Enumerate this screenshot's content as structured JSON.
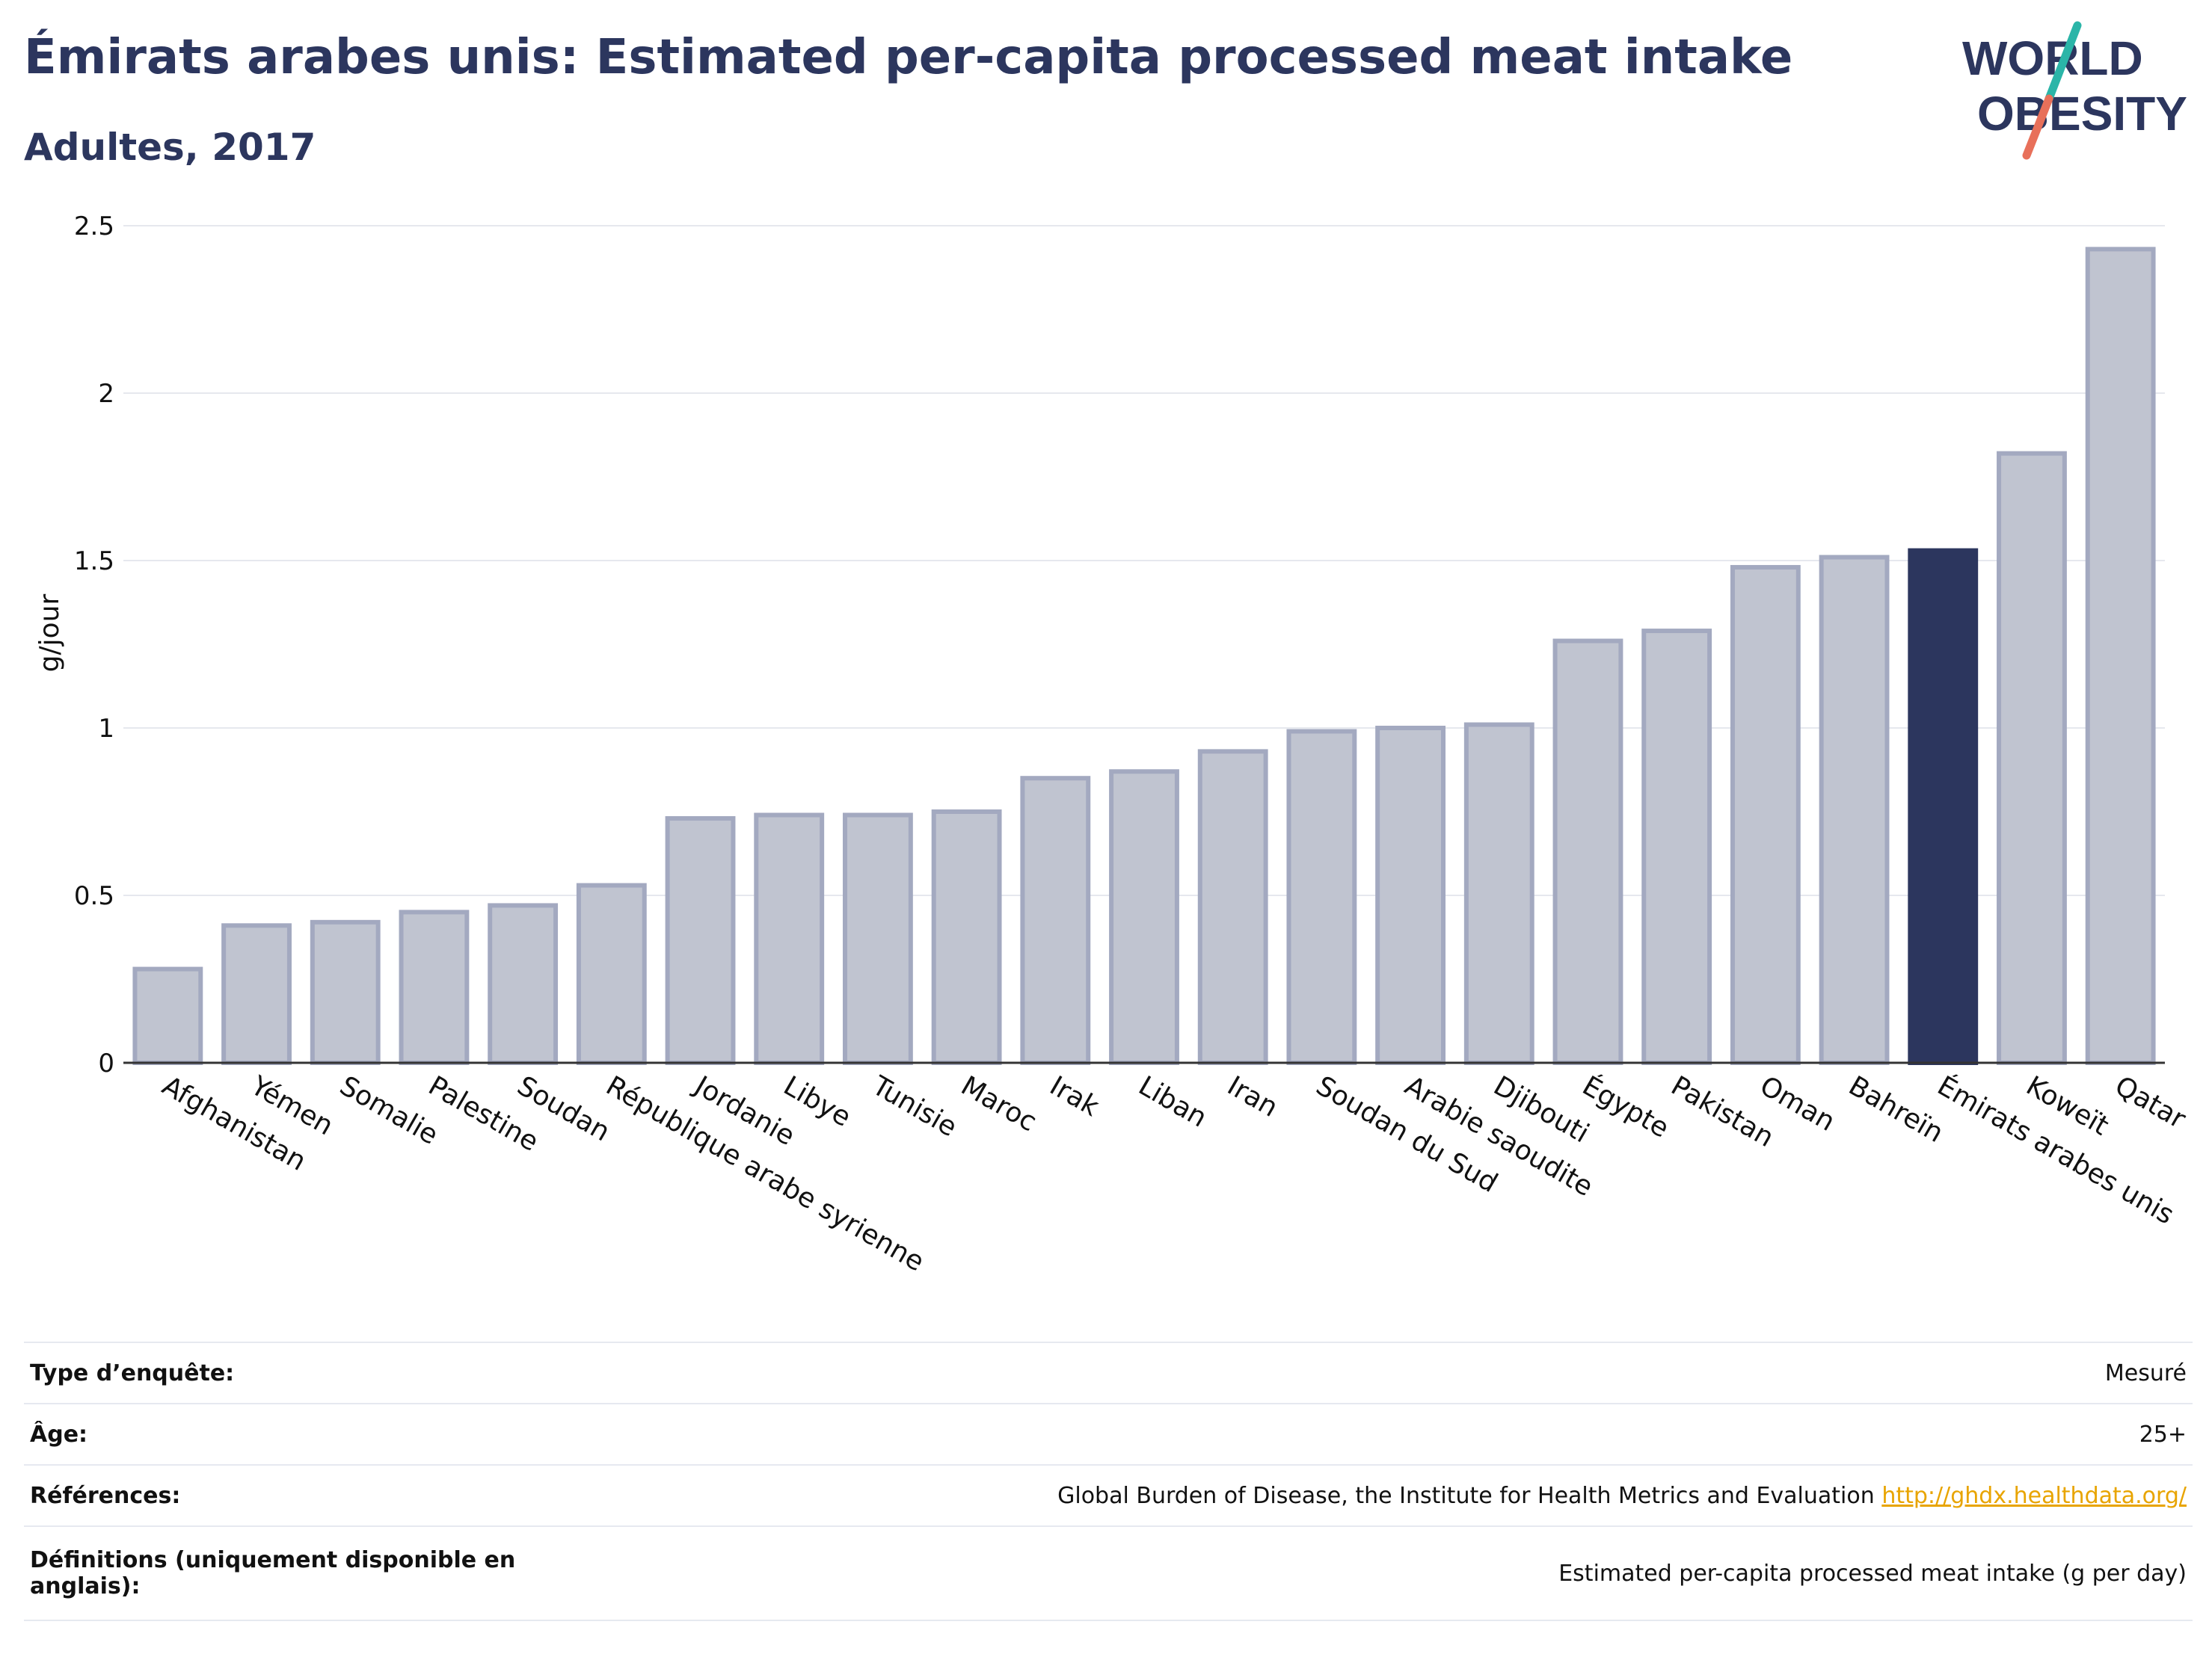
{
  "header": {
    "title": "Émirats arabes unis: Estimated per-capita processed meat intake",
    "subtitle": "Adultes, 2017"
  },
  "logo": {
    "line1": "WORLD",
    "line2": "OBESITY",
    "colors": {
      "text": "#2c365e",
      "slash_top": "#2bb5a8",
      "slash_bottom": "#e8705a"
    }
  },
  "chart_data": {
    "type": "bar",
    "title": "Émirats arabes unis: Estimated per-capita processed meat intake",
    "subtitle": "Adultes, 2017",
    "xlabel": "",
    "ylabel": "g/jour",
    "ylim": [
      0,
      2.5
    ],
    "yticks": [
      0,
      0.5,
      1,
      1.5,
      2,
      2.5
    ],
    "ytick_labels": [
      "0",
      "0.5",
      "1",
      "1.5",
      "2",
      "2.5"
    ],
    "grid": true,
    "categories": [
      "Afghanistan",
      "Yémen",
      "Somalie",
      "Palestine",
      "Soudan",
      "République arabe syrienne",
      "Jordanie",
      "Libye",
      "Tunisie",
      "Maroc",
      "Irak",
      "Liban",
      "Iran",
      "Soudan du Sud",
      "Arabie saoudite",
      "Djibouti",
      "Égypte",
      "Pakistan",
      "Oman",
      "Bahreïn",
      "Émirats arabes unis",
      "Koweït",
      "Qatar"
    ],
    "values": [
      0.28,
      0.41,
      0.42,
      0.45,
      0.47,
      0.53,
      0.73,
      0.74,
      0.74,
      0.75,
      0.85,
      0.87,
      0.93,
      0.99,
      1.0,
      1.01,
      1.26,
      1.29,
      1.48,
      1.51,
      1.53,
      1.82,
      2.43
    ],
    "highlight": "Émirats arabes unis",
    "colors": {
      "bar": "#c0c4d0",
      "bar_outline": "#a3a9c0",
      "highlight": "#2c365e",
      "grid": "#e6e8ee",
      "axis": "#333333"
    }
  },
  "info": [
    {
      "label": "Type d’enquête:",
      "value": "Mesuré"
    },
    {
      "label": "Âge:",
      "value": "25+"
    },
    {
      "label": "Références:",
      "value": "Global Burden of Disease, the Institute for Health Metrics and Evaluation",
      "link": "http://ghdx.healthdata.org/"
    },
    {
      "label": "Définitions (uniquement disponible en anglais):",
      "value": "Estimated per-capita processed meat intake (g per day)"
    }
  ]
}
